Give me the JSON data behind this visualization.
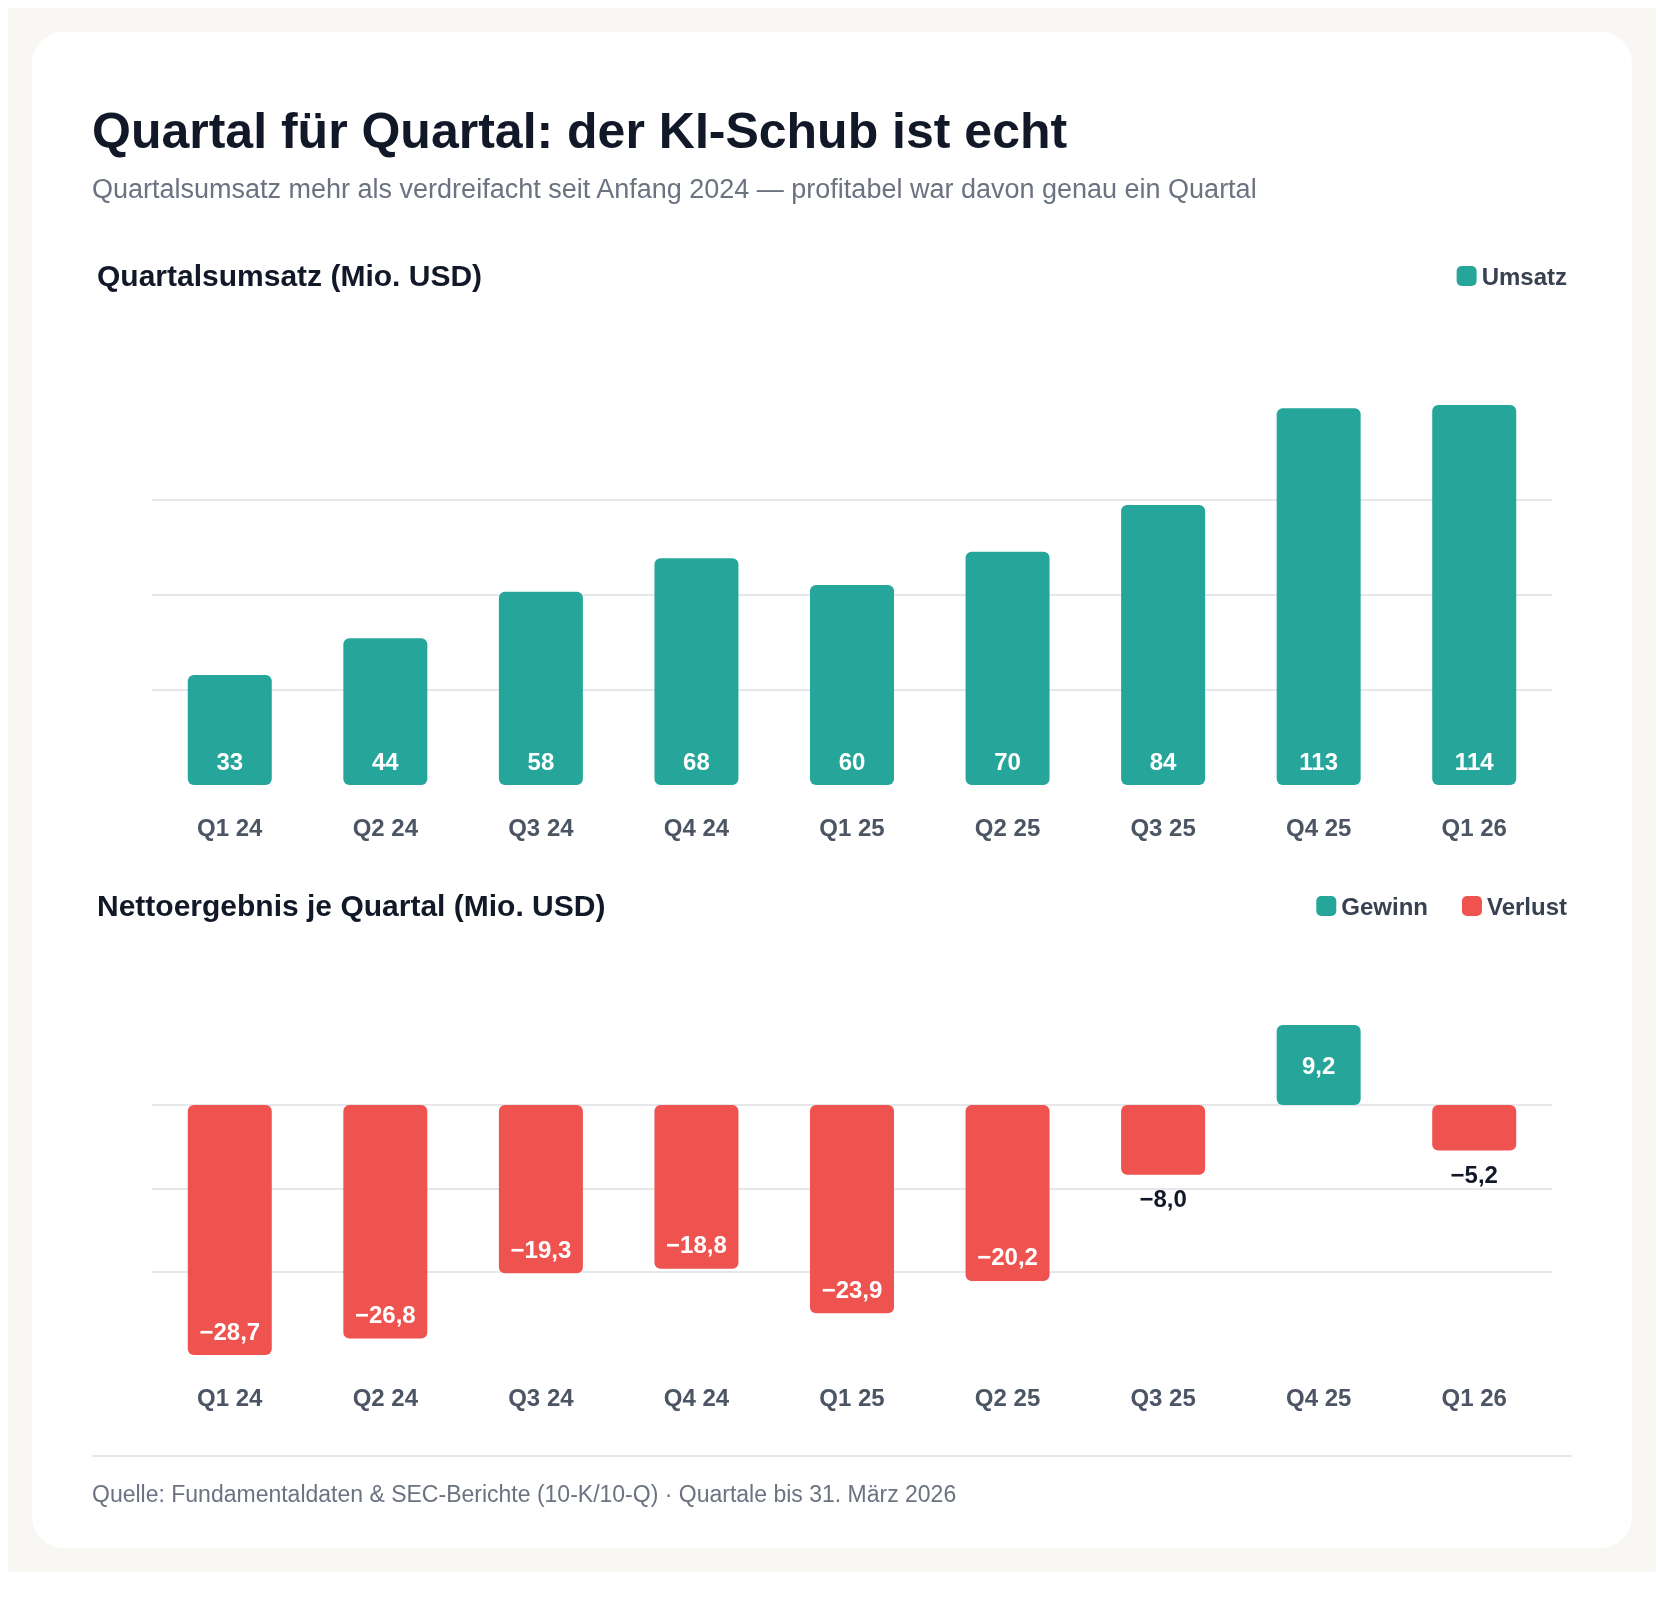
{
  "chart_data": [
    {
      "type": "bar",
      "title": "Quartal für Quartal: der KI-Schub ist echt",
      "subtitle": "Quartalsumsatz mehr als verdreifacht seit Anfang 2024 — profitabel war davon genau ein Quartal",
      "ylabel": "Quartalsumsatz (Mio. USD)",
      "categories": [
        "Q1 24",
        "Q2 24",
        "Q3 24",
        "Q4 24",
        "Q1 25",
        "Q2 25",
        "Q3 25",
        "Q4 25",
        "Q1 26"
      ],
      "series": [
        {
          "name": "Umsatz",
          "color": "#26a69a",
          "values": [
            33,
            44,
            58,
            68,
            60,
            70,
            84,
            113,
            114
          ],
          "value_labels": [
            "33",
            "44",
            "58",
            "68",
            "60",
            "70",
            "84",
            "113",
            "114"
          ]
        }
      ],
      "ylim": [
        0,
        114
      ],
      "yticks": [
        {
          "value": 28.5,
          "label": null
        },
        {
          "value": 57,
          "label": null
        },
        {
          "value": 85.5,
          "label": null
        }
      ],
      "grid": "y",
      "tick_labels": "x",
      "legend": "top right"
    },
    {
      "type": "bar",
      "ylabel": "Nettoergebnis je Quartal (Mio. USD)",
      "categories": [
        "Q1 24",
        "Q2 24",
        "Q3 24",
        "Q4 24",
        "Q1 25",
        "Q2 25",
        "Q3 25",
        "Q4 25",
        "Q1 26"
      ],
      "stacked": true,
      "series": [
        {
          "name": "Gewinn",
          "color": "#26a69a",
          "values": [
            null,
            null,
            null,
            null,
            null,
            null,
            null,
            9.2,
            null
          ],
          "value_labels": [
            null,
            null,
            null,
            null,
            null,
            null,
            null,
            "9,2",
            null
          ]
        },
        {
          "name": "Verlust",
          "color": "#ef5350",
          "values": [
            -28.7,
            -26.8,
            -19.3,
            -18.8,
            -23.9,
            -20.2,
            -8.0,
            null,
            -5.2
          ],
          "value_labels": [
            "−28,7",
            "−26,8",
            "−19,3",
            "−18,8",
            "−23,9",
            "−20,2",
            "−8,0",
            null,
            "−5,2"
          ]
        }
      ],
      "ylim": [
        -28.7,
        9.2
      ],
      "yticks": [
        {
          "value": -19.1,
          "label": null
        },
        {
          "value": -9.6,
          "label": null
        },
        {
          "value": 0,
          "label": null
        }
      ],
      "grid": "y",
      "tick_labels": "x",
      "legend": "top right",
      "annotations": [
        "Quelle: Fundamentaldaten & SEC-Berichte (10-K/10-Q) · Quartale bis 31. März 2026"
      ]
    }
  ]
}
